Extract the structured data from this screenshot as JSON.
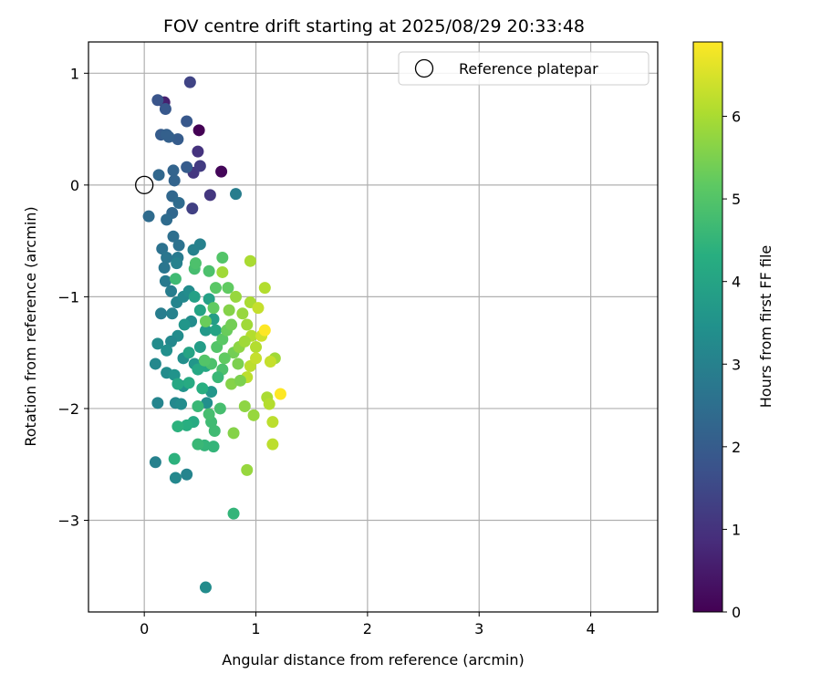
{
  "chart_data": {
    "type": "scatter",
    "title": "FOV centre drift starting at 2025/08/29 20:33:48",
    "xlabel": "Angular distance from reference (arcmin)",
    "ylabel": "Rotation from reference (arcmin)",
    "xlim": [
      -0.5,
      4.6
    ],
    "ylim": [
      -3.82,
      1.28
    ],
    "xticks": [
      0,
      1,
      2,
      3,
      4
    ],
    "yticks": [
      1,
      0,
      -1,
      -2,
      -3
    ],
    "grid": true,
    "legend": {
      "label": "Reference platepar",
      "location": "top-right"
    },
    "reference_point": {
      "x": 0,
      "y": 0
    },
    "colorbar": {
      "label": "Hours from first FF file",
      "range": [
        0,
        6.9
      ],
      "ticks": [
        0,
        1,
        2,
        3,
        4,
        5,
        6
      ],
      "colormap": "viridis"
    },
    "points": [
      {
        "x": 0.49,
        "y": 0.49,
        "h": 0.0
      },
      {
        "x": 0.69,
        "y": 0.12,
        "h": 0.1
      },
      {
        "x": 0.18,
        "y": 0.74,
        "h": 0.6
      },
      {
        "x": 0.48,
        "y": 0.3,
        "h": 1.0
      },
      {
        "x": 0.44,
        "y": 0.11,
        "h": 1.1
      },
      {
        "x": 0.5,
        "y": 0.17,
        "h": 1.2
      },
      {
        "x": 0.59,
        "y": -0.09,
        "h": 1.1
      },
      {
        "x": 0.43,
        "y": -0.21,
        "h": 1.3
      },
      {
        "x": 0.41,
        "y": 0.92,
        "h": 1.4
      },
      {
        "x": 0.12,
        "y": 0.76,
        "h": 1.8
      },
      {
        "x": 0.19,
        "y": 0.68,
        "h": 1.9
      },
      {
        "x": 0.38,
        "y": 0.57,
        "h": 1.9
      },
      {
        "x": 0.3,
        "y": 0.41,
        "h": 2.0
      },
      {
        "x": 0.15,
        "y": 0.45,
        "h": 2.0
      },
      {
        "x": 0.2,
        "y": 0.45,
        "h": 2.1
      },
      {
        "x": 0.22,
        "y": 0.43,
        "h": 2.1
      },
      {
        "x": 0.38,
        "y": 0.16,
        "h": 2.0
      },
      {
        "x": 0.26,
        "y": 0.13,
        "h": 2.2
      },
      {
        "x": 0.13,
        "y": 0.09,
        "h": 2.3
      },
      {
        "x": 0.27,
        "y": 0.04,
        "h": 2.2
      },
      {
        "x": 0.25,
        "y": -0.1,
        "h": 2.3
      },
      {
        "x": 0.31,
        "y": -0.16,
        "h": 2.4
      },
      {
        "x": 0.25,
        "y": -0.25,
        "h": 2.3
      },
      {
        "x": 0.04,
        "y": -0.28,
        "h": 2.4
      },
      {
        "x": 0.2,
        "y": -0.31,
        "h": 2.4
      },
      {
        "x": 0.26,
        "y": -0.46,
        "h": 2.5
      },
      {
        "x": 0.31,
        "y": -0.54,
        "h": 2.6
      },
      {
        "x": 0.16,
        "y": -0.57,
        "h": 2.6
      },
      {
        "x": 0.2,
        "y": -0.65,
        "h": 2.7
      },
      {
        "x": 0.18,
        "y": -0.74,
        "h": 2.7
      },
      {
        "x": 0.3,
        "y": -0.65,
        "h": 2.8
      },
      {
        "x": 0.5,
        "y": -0.53,
        "h": 3.0
      },
      {
        "x": 0.19,
        "y": -0.86,
        "h": 2.8
      },
      {
        "x": 0.24,
        "y": -0.95,
        "h": 2.9
      },
      {
        "x": 0.29,
        "y": -0.7,
        "h": 3.0
      },
      {
        "x": 0.15,
        "y": -1.15,
        "h": 2.9
      },
      {
        "x": 0.25,
        "y": -1.15,
        "h": 3.0
      },
      {
        "x": 0.29,
        "y": -1.05,
        "h": 3.1
      },
      {
        "x": 0.35,
        "y": -1.0,
        "h": 3.2
      },
      {
        "x": 0.4,
        "y": -0.95,
        "h": 3.3
      },
      {
        "x": 0.42,
        "y": -1.22,
        "h": 3.3
      },
      {
        "x": 0.3,
        "y": -1.35,
        "h": 3.3
      },
      {
        "x": 0.24,
        "y": -1.4,
        "h": 3.2
      },
      {
        "x": 0.35,
        "y": -1.55,
        "h": 3.4
      },
      {
        "x": 0.12,
        "y": -1.42,
        "h": 3.3
      },
      {
        "x": 0.2,
        "y": -1.48,
        "h": 3.4
      },
      {
        "x": 0.1,
        "y": -1.6,
        "h": 3.2
      },
      {
        "x": 0.2,
        "y": -1.68,
        "h": 3.3
      },
      {
        "x": 0.27,
        "y": -1.7,
        "h": 3.5
      },
      {
        "x": 0.35,
        "y": -1.8,
        "h": 3.5
      },
      {
        "x": 0.45,
        "y": -1.6,
        "h": 3.6
      },
      {
        "x": 0.12,
        "y": -1.95,
        "h": 3.1
      },
      {
        "x": 0.28,
        "y": -1.95,
        "h": 3.2
      },
      {
        "x": 0.33,
        "y": -1.96,
        "h": 3.3
      },
      {
        "x": 0.1,
        "y": -2.48,
        "h": 3.0
      },
      {
        "x": 0.38,
        "y": -2.59,
        "h": 3.1
      },
      {
        "x": 0.28,
        "y": -2.62,
        "h": 3.2
      },
      {
        "x": 0.55,
        "y": -3.6,
        "h": 3.3
      },
      {
        "x": 0.56,
        "y": -1.95,
        "h": 3.4
      },
      {
        "x": 0.6,
        "y": -1.85,
        "h": 3.6
      },
      {
        "x": 0.55,
        "y": -1.3,
        "h": 3.7
      },
      {
        "x": 0.5,
        "y": -1.45,
        "h": 3.8
      },
      {
        "x": 0.62,
        "y": -1.2,
        "h": 3.8
      },
      {
        "x": 0.58,
        "y": -1.02,
        "h": 3.9
      },
      {
        "x": 0.45,
        "y": -1.0,
        "h": 3.9
      },
      {
        "x": 0.5,
        "y": -1.12,
        "h": 4.0
      },
      {
        "x": 0.64,
        "y": -1.3,
        "h": 4.0
      },
      {
        "x": 0.55,
        "y": -1.62,
        "h": 4.1
      },
      {
        "x": 0.48,
        "y": -1.65,
        "h": 4.1
      },
      {
        "x": 0.4,
        "y": -1.77,
        "h": 4.2
      },
      {
        "x": 0.44,
        "y": -2.12,
        "h": 4.2
      },
      {
        "x": 0.38,
        "y": -2.15,
        "h": 4.3
      },
      {
        "x": 0.3,
        "y": -2.16,
        "h": 4.4
      },
      {
        "x": 0.27,
        "y": -2.45,
        "h": 4.4
      },
      {
        "x": 0.54,
        "y": -2.33,
        "h": 4.5
      },
      {
        "x": 0.62,
        "y": -2.34,
        "h": 4.5
      },
      {
        "x": 0.48,
        "y": -2.32,
        "h": 4.6
      },
      {
        "x": 0.8,
        "y": -2.94,
        "h": 4.5
      },
      {
        "x": 0.48,
        "y": -1.98,
        "h": 4.6
      },
      {
        "x": 0.6,
        "y": -2.12,
        "h": 4.7
      },
      {
        "x": 0.63,
        "y": -2.2,
        "h": 4.7
      },
      {
        "x": 0.58,
        "y": -2.05,
        "h": 4.8
      },
      {
        "x": 0.68,
        "y": -2.0,
        "h": 4.8
      },
      {
        "x": 0.7,
        "y": -1.65,
        "h": 4.9
      },
      {
        "x": 0.6,
        "y": -1.6,
        "h": 4.9
      },
      {
        "x": 0.54,
        "y": -1.57,
        "h": 5.0
      },
      {
        "x": 0.65,
        "y": -1.45,
        "h": 5.0
      },
      {
        "x": 0.7,
        "y": -1.38,
        "h": 5.1
      },
      {
        "x": 0.58,
        "y": -0.77,
        "h": 4.9
      },
      {
        "x": 0.45,
        "y": -0.75,
        "h": 4.8
      },
      {
        "x": 0.46,
        "y": -0.7,
        "h": 4.9
      },
      {
        "x": 0.28,
        "y": -0.84,
        "h": 4.7
      },
      {
        "x": 0.7,
        "y": -0.65,
        "h": 5.0
      },
      {
        "x": 0.64,
        "y": -0.92,
        "h": 5.1
      },
      {
        "x": 0.75,
        "y": -0.92,
        "h": 5.2
      },
      {
        "x": 0.62,
        "y": -1.1,
        "h": 5.2
      },
      {
        "x": 0.55,
        "y": -1.22,
        "h": 5.3
      },
      {
        "x": 0.74,
        "y": -1.3,
        "h": 5.3
      },
      {
        "x": 0.78,
        "y": -1.25,
        "h": 5.4
      },
      {
        "x": 0.8,
        "y": -1.5,
        "h": 5.4
      },
      {
        "x": 0.84,
        "y": -1.6,
        "h": 5.5
      },
      {
        "x": 0.78,
        "y": -1.78,
        "h": 5.6
      },
      {
        "x": 0.8,
        "y": -2.22,
        "h": 5.6
      },
      {
        "x": 0.9,
        "y": -1.98,
        "h": 5.7
      },
      {
        "x": 0.92,
        "y": -2.55,
        "h": 5.8
      },
      {
        "x": 0.98,
        "y": -2.06,
        "h": 5.8
      },
      {
        "x": 0.76,
        "y": -1.12,
        "h": 5.6
      },
      {
        "x": 0.85,
        "y": -1.45,
        "h": 5.7
      },
      {
        "x": 0.88,
        "y": -1.15,
        "h": 5.8
      },
      {
        "x": 0.92,
        "y": -1.25,
        "h": 5.9
      },
      {
        "x": 0.95,
        "y": -1.05,
        "h": 6.0
      },
      {
        "x": 0.95,
        "y": -0.68,
        "h": 6.0
      },
      {
        "x": 0.7,
        "y": -0.78,
        "h": 5.9
      },
      {
        "x": 0.82,
        "y": -1.0,
        "h": 5.8
      },
      {
        "x": 0.96,
        "y": -1.35,
        "h": 6.1
      },
      {
        "x": 1.0,
        "y": -1.45,
        "h": 6.1
      },
      {
        "x": 0.95,
        "y": -1.62,
        "h": 6.2
      },
      {
        "x": 0.92,
        "y": -1.72,
        "h": 6.2
      },
      {
        "x": 1.0,
        "y": -1.55,
        "h": 6.3
      },
      {
        "x": 1.02,
        "y": -1.1,
        "h": 6.3
      },
      {
        "x": 1.05,
        "y": -1.35,
        "h": 6.4
      },
      {
        "x": 1.08,
        "y": -0.92,
        "h": 6.1
      },
      {
        "x": 1.1,
        "y": -1.9,
        "h": 6.0
      },
      {
        "x": 1.12,
        "y": -1.96,
        "h": 6.1
      },
      {
        "x": 1.15,
        "y": -2.12,
        "h": 6.2
      },
      {
        "x": 1.15,
        "y": -2.32,
        "h": 6.2
      },
      {
        "x": 1.17,
        "y": -1.55,
        "h": 5.9
      },
      {
        "x": 1.13,
        "y": -1.58,
        "h": 6.3
      },
      {
        "x": 1.08,
        "y": -1.3,
        "h": 6.9
      },
      {
        "x": 1.22,
        "y": -1.87,
        "h": 6.9
      },
      {
        "x": 0.82,
        "y": -0.08,
        "h": 2.9
      },
      {
        "x": 0.44,
        "y": -0.58,
        "h": 3.0
      },
      {
        "x": 0.36,
        "y": -1.25,
        "h": 3.6
      },
      {
        "x": 0.4,
        "y": -1.5,
        "h": 4.0
      },
      {
        "x": 0.3,
        "y": -1.78,
        "h": 4.1
      },
      {
        "x": 0.52,
        "y": -1.82,
        "h": 4.3
      },
      {
        "x": 0.66,
        "y": -1.72,
        "h": 4.6
      },
      {
        "x": 0.72,
        "y": -1.55,
        "h": 5.2
      },
      {
        "x": 0.86,
        "y": -1.75,
        "h": 5.5
      },
      {
        "x": 0.9,
        "y": -1.4,
        "h": 5.9
      }
    ]
  }
}
